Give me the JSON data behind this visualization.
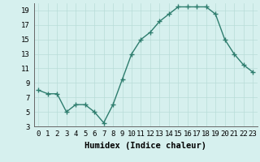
{
  "x": [
    0,
    1,
    2,
    3,
    4,
    5,
    6,
    7,
    8,
    9,
    10,
    11,
    12,
    13,
    14,
    15,
    16,
    17,
    18,
    19,
    20,
    21,
    22,
    23
  ],
  "y": [
    8,
    7.5,
    7.5,
    5,
    6,
    6,
    5,
    3.5,
    6,
    9.5,
    13,
    15,
    16,
    17.5,
    18.5,
    19.5,
    19.5,
    19.5,
    19.5,
    18.5,
    15,
    13,
    11.5,
    10.5
  ],
  "line_color": "#2e7d6e",
  "marker": "+",
  "marker_size": 4,
  "bg_color": "#d6f0ee",
  "grid_color": "#b8dcd8",
  "xlabel": "Humidex (Indice chaleur)",
  "xlim": [
    -0.5,
    23.5
  ],
  "ylim": [
    3,
    20
  ],
  "yticks": [
    3,
    5,
    7,
    9,
    11,
    13,
    15,
    17,
    19
  ],
  "xtick_labels": [
    "0",
    "1",
    "2",
    "3",
    "4",
    "5",
    "6",
    "7",
    "8",
    "9",
    "10",
    "11",
    "12",
    "13",
    "14",
    "15",
    "16",
    "17",
    "18",
    "19",
    "20",
    "21",
    "22",
    "23"
  ],
  "xlabel_fontsize": 7.5,
  "tick_fontsize": 6.5,
  "line_width": 1.0
}
